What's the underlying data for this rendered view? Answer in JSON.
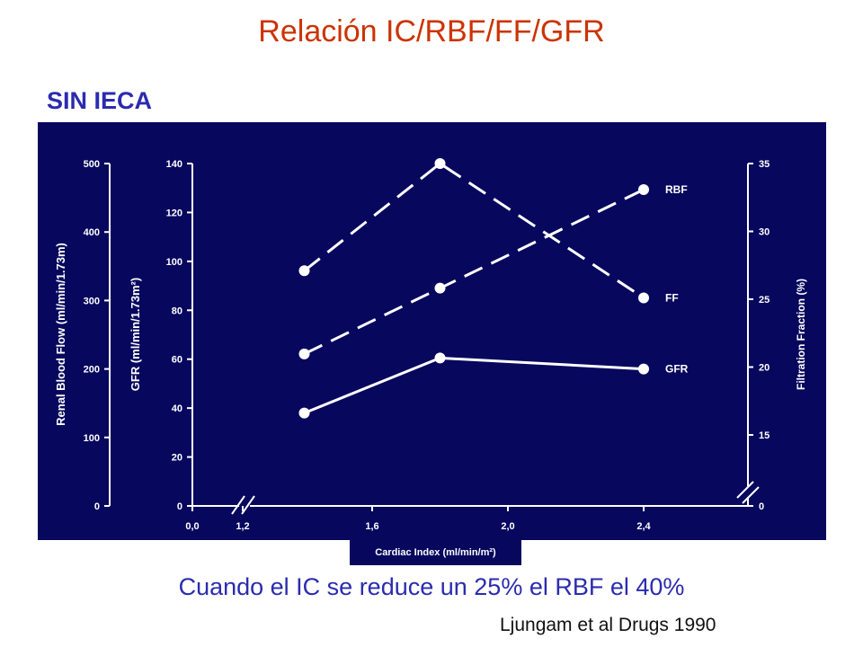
{
  "slide": {
    "title": "Relación IC/RBF/FF/GFR",
    "subtitle": "SIN  IECA",
    "caption": "Cuando el IC se reduce un 25% el RBF el 40%",
    "reference": "Ljungam et al Drugs 1990"
  },
  "colors": {
    "title": "#cc3300",
    "subtitle": "#2b2bb0",
    "panel": "#07075e",
    "marks": "#ffffff"
  },
  "chart_data": {
    "type": "line",
    "xlabel": "Cardiac Index (ml/min/m²)",
    "x_ticks": [
      "0,0",
      "1,2",
      "1,6",
      "2,0",
      "2,4"
    ],
    "x": [
      1.4,
      1.8,
      2.4
    ],
    "axes": {
      "rbf": {
        "label": "Renal Blood Flow (ml/min/1.73m)",
        "ticks": [
          "0",
          "100",
          "200",
          "300",
          "400",
          "500"
        ],
        "ylim": [
          0,
          500
        ]
      },
      "gfr": {
        "label": "GFR (ml/min/1.73m²)",
        "ticks": [
          "0",
          "20",
          "40",
          "60",
          "80",
          "100",
          "120",
          "140"
        ],
        "ylim": [
          0,
          140
        ]
      },
      "ff": {
        "label": "Filtration Fraction (%)",
        "ticks": [
          "0",
          "15",
          "20",
          "25",
          "30",
          "35"
        ],
        "ylim": [
          10,
          35
        ]
      }
    },
    "series": [
      {
        "name": "RBF",
        "axis": "rbf",
        "style": "dashed",
        "values": [
          222,
          318,
          462
        ]
      },
      {
        "name": "FF",
        "axis": "ff",
        "style": "dashed",
        "values": [
          27.1,
          35,
          25.1
        ]
      },
      {
        "name": "GFR",
        "axis": "gfr",
        "style": "solid",
        "values": [
          38,
          60.5,
          56
        ]
      }
    ]
  }
}
